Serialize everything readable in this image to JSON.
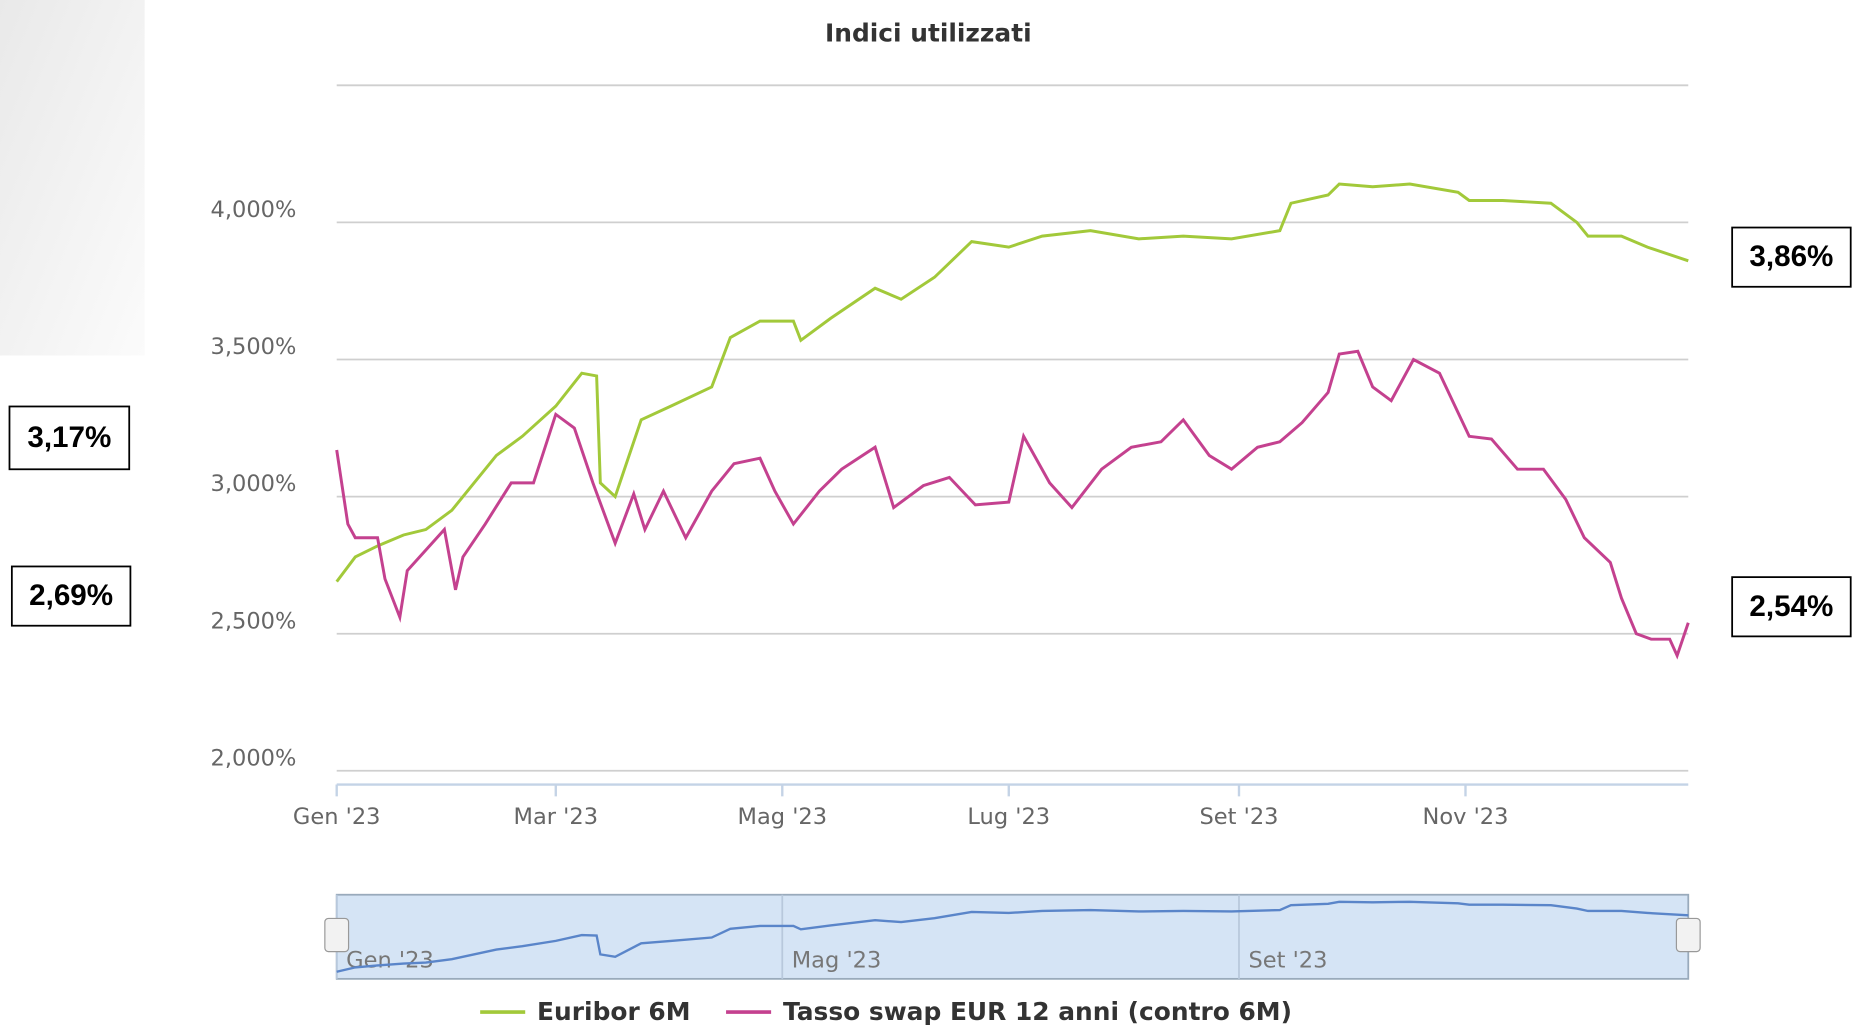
{
  "chart_data": {
    "type": "line",
    "title": "Indici utilizzati",
    "xlim": [
      0,
      364
    ],
    "xticks": [
      {
        "value": 0,
        "label": "Gen '23"
      },
      {
        "value": 59,
        "label": "Mar '23"
      },
      {
        "value": 120,
        "label": "Mag '23"
      },
      {
        "value": 181,
        "label": "Lug '23"
      },
      {
        "value": 243,
        "label": "Set '23"
      },
      {
        "value": 304,
        "label": "Nov '23"
      }
    ],
    "ylim": [
      1.95,
      4.5
    ],
    "yticks": [
      {
        "value": 2,
        "label": "2,000%"
      },
      {
        "value": 2.5,
        "label": "2,500%"
      },
      {
        "value": 3,
        "label": "3,000%"
      },
      {
        "value": 3.5,
        "label": "3,500%"
      },
      {
        "value": 4,
        "label": "4,000%"
      },
      4.5
    ],
    "grid": true,
    "series": [
      {
        "name": "Euribor 6M",
        "color": "#a2c93a",
        "x": [
          0,
          5,
          11,
          18,
          24,
          31,
          43,
          50,
          59,
          66,
          70,
          71,
          75,
          82,
          90,
          101,
          106,
          114,
          123,
          125,
          133,
          145,
          152,
          161,
          171,
          181,
          190,
          203,
          216,
          228,
          241,
          254,
          257,
          267,
          270,
          279,
          289,
          302,
          305,
          314,
          327,
          334,
          337,
          346,
          353,
          364
        ],
        "values": [
          2.69,
          2.78,
          2.82,
          2.86,
          2.88,
          2.95,
          3.15,
          3.22,
          3.33,
          3.45,
          3.44,
          3.05,
          3.0,
          3.28,
          3.33,
          3.4,
          3.58,
          3.64,
          3.64,
          3.57,
          3.65,
          3.76,
          3.72,
          3.8,
          3.93,
          3.91,
          3.95,
          3.97,
          3.94,
          3.95,
          3.94,
          3.97,
          4.07,
          4.1,
          4.14,
          4.13,
          4.14,
          4.11,
          4.08,
          4.08,
          4.07,
          4.0,
          3.95,
          3.95,
          3.91,
          3.86
        ]
      },
      {
        "name": "Tasso swap EUR 12 anni (contro 6M)",
        "color": "#c4418f",
        "x": [
          0,
          3,
          5,
          11,
          13,
          17,
          19,
          29,
          32,
          34,
          40,
          47,
          53,
          59,
          64,
          69,
          75,
          80,
          83,
          88,
          94,
          101,
          107,
          114,
          118,
          123,
          130,
          136,
          145,
          150,
          158,
          165,
          172,
          181,
          185,
          192,
          198,
          206,
          214,
          222,
          228,
          235,
          241,
          248,
          254,
          260,
          267,
          270,
          275,
          279,
          284,
          290,
          297,
          305,
          311,
          318,
          325,
          331,
          336,
          343,
          346,
          350,
          354,
          359,
          361,
          364
        ],
        "values": [
          3.17,
          2.9,
          2.85,
          2.85,
          2.7,
          2.56,
          2.73,
          2.88,
          2.66,
          2.78,
          2.9,
          3.05,
          3.05,
          3.3,
          3.25,
          3.05,
          2.83,
          3.01,
          2.88,
          3.02,
          2.85,
          3.02,
          3.12,
          3.14,
          3.02,
          2.9,
          3.02,
          3.1,
          3.18,
          2.96,
          3.04,
          3.07,
          2.97,
          2.98,
          3.22,
          3.05,
          2.96,
          3.1,
          3.18,
          3.2,
          3.28,
          3.15,
          3.1,
          3.18,
          3.2,
          3.27,
          3.38,
          3.52,
          3.53,
          3.4,
          3.35,
          3.5,
          3.45,
          3.22,
          3.21,
          3.1,
          3.1,
          2.99,
          2.85,
          2.76,
          2.63,
          2.5,
          2.48,
          2.48,
          2.42,
          2.54
        ]
      }
    ],
    "navigator": {
      "xticks": [
        {
          "value": 0,
          "label": "Gen '23"
        },
        {
          "value": 120,
          "label": "Mag '23"
        },
        {
          "value": 243,
          "label": "Set '23"
        }
      ]
    },
    "annotations": [
      {
        "text": "3,17%"
      },
      {
        "text": "2,69%"
      },
      {
        "text": "3,86%"
      },
      {
        "text": "2,54%"
      }
    ]
  }
}
